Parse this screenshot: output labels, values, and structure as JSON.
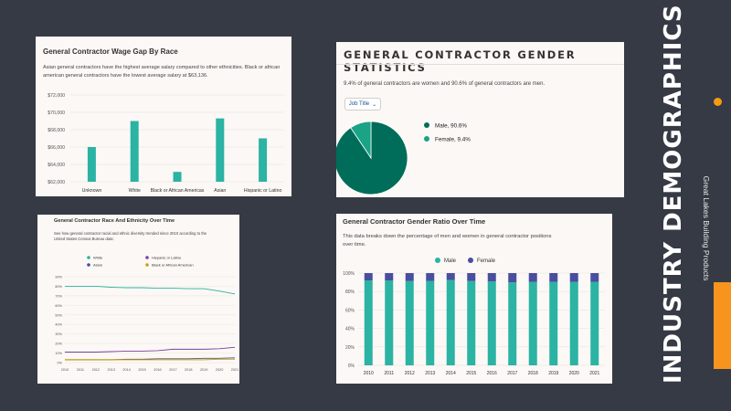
{
  "side_title": "INDUSTRY DEMOGRAPHICS",
  "brand": "Great Lakes Building Products",
  "colors": {
    "teal": "#2bb3a3",
    "purple": "#4a4e9f",
    "dark_teal": "#006c5a",
    "bg": "#363a45",
    "orange": "#f7941d"
  },
  "panel1": {
    "title": "General Contractor Wage Gap By Race",
    "description": "Asian general contractors have the highest average salary compared to other ethnicities. Black or african american general contractors have the lowest average salary at $63,136."
  },
  "panel2": {
    "title": "GENERAL CONTRACTOR GENDER STATISTICS",
    "description": "9.4% of general contractors are women and 90.6% of general contractors are men.",
    "dropdown": "Job Title",
    "dropdown_icon": "chevron-down-icon"
  },
  "panel3": {
    "title": "General Contractor Race And Ethnicity Over Time",
    "description": "See how general contractor racial and ethnic diversity trended since 2010 according to the United States Census Bureau data:"
  },
  "panel4": {
    "title": "General Contractor Gender Ratio Over Time",
    "description": "This data breaks down the percentage of men and women in general contractor positions over time."
  },
  "chart_data": [
    {
      "type": "bar",
      "title": "General Contractor Wage Gap By Race",
      "categories": [
        "Unknown",
        "White",
        "Black or African Americas",
        "Asian",
        "Hispanic or Latino"
      ],
      "values": [
        66000,
        69000,
        63136,
        69300,
        67000
      ],
      "ylim": [
        62000,
        72000
      ],
      "yticks": [
        "$62,000",
        "$64,000",
        "$66,000",
        "$68,000",
        "$70,000",
        "$72,000"
      ],
      "ytick_values": [
        62000,
        64000,
        66000,
        68000,
        70000,
        72000
      ],
      "color": "#2bb3a3",
      "grid": true
    },
    {
      "type": "pie",
      "labels": [
        "Male, 90.6%",
        "Female, 9.4%"
      ],
      "values": [
        90.6,
        9.4
      ],
      "colors": [
        "#006c5a",
        "#1aa386"
      ],
      "legend": "right"
    },
    {
      "type": "line",
      "title": "General Contractor Race And Ethnicity Over Time",
      "x": [
        "2010",
        "2011",
        "2012",
        "2013",
        "2014",
        "2015",
        "2016",
        "2017",
        "2018",
        "2019",
        "2020",
        "2021"
      ],
      "yticks": [
        "0%",
        "10%",
        "20%",
        "30%",
        "40%",
        "50%",
        "60%",
        "70%",
        "80%",
        "90%"
      ],
      "ylim": [
        0,
        90
      ],
      "legend": "top",
      "series": [
        {
          "name": "White",
          "color": "#2bb3a3",
          "values": [
            80,
            80,
            80,
            79,
            78.5,
            78.5,
            78,
            78,
            77.5,
            77.5,
            75,
            72
          ]
        },
        {
          "name": "Hispanic or Latino",
          "color": "#7b3fa0",
          "values": [
            11,
            11,
            11,
            11.5,
            12,
            12,
            12.5,
            14,
            14,
            14,
            14.5,
            16
          ]
        },
        {
          "name": "Asian",
          "color": "#4a4e9f",
          "values": [
            3,
            3,
            3,
            3,
            3.5,
            3.5,
            4,
            4,
            4,
            4.5,
            4.5,
            5
          ]
        },
        {
          "name": "Black or African American",
          "color": "#c9a400",
          "values": [
            3,
            3,
            3,
            3,
            3,
            3,
            3,
            3,
            3,
            3,
            3.5,
            3.5
          ]
        }
      ]
    },
    {
      "type": "bar",
      "stacked": true,
      "title": "General Contractor Gender Ratio Over Time",
      "categories": [
        "2010",
        "2011",
        "2012",
        "2013",
        "2014",
        "2015",
        "2016",
        "2017",
        "2018",
        "2019",
        "2020",
        "2021"
      ],
      "yticks": [
        "0%",
        "20%",
        "40%",
        "60%",
        "80%",
        "100%"
      ],
      "ylim": [
        0,
        100
      ],
      "legend": "top",
      "series": [
        {
          "name": "Male",
          "color": "#2bb3a3",
          "values": [
            92,
            92,
            91.5,
            91.5,
            92.5,
            91.5,
            91,
            90,
            90.5,
            90.5,
            90.5,
            90.6
          ]
        },
        {
          "name": "Female",
          "color": "#4a4e9f",
          "values": [
            8,
            8,
            8.5,
            8.5,
            7.5,
            8.5,
            9,
            10,
            9.5,
            9.5,
            9.5,
            9.4
          ]
        }
      ]
    }
  ]
}
